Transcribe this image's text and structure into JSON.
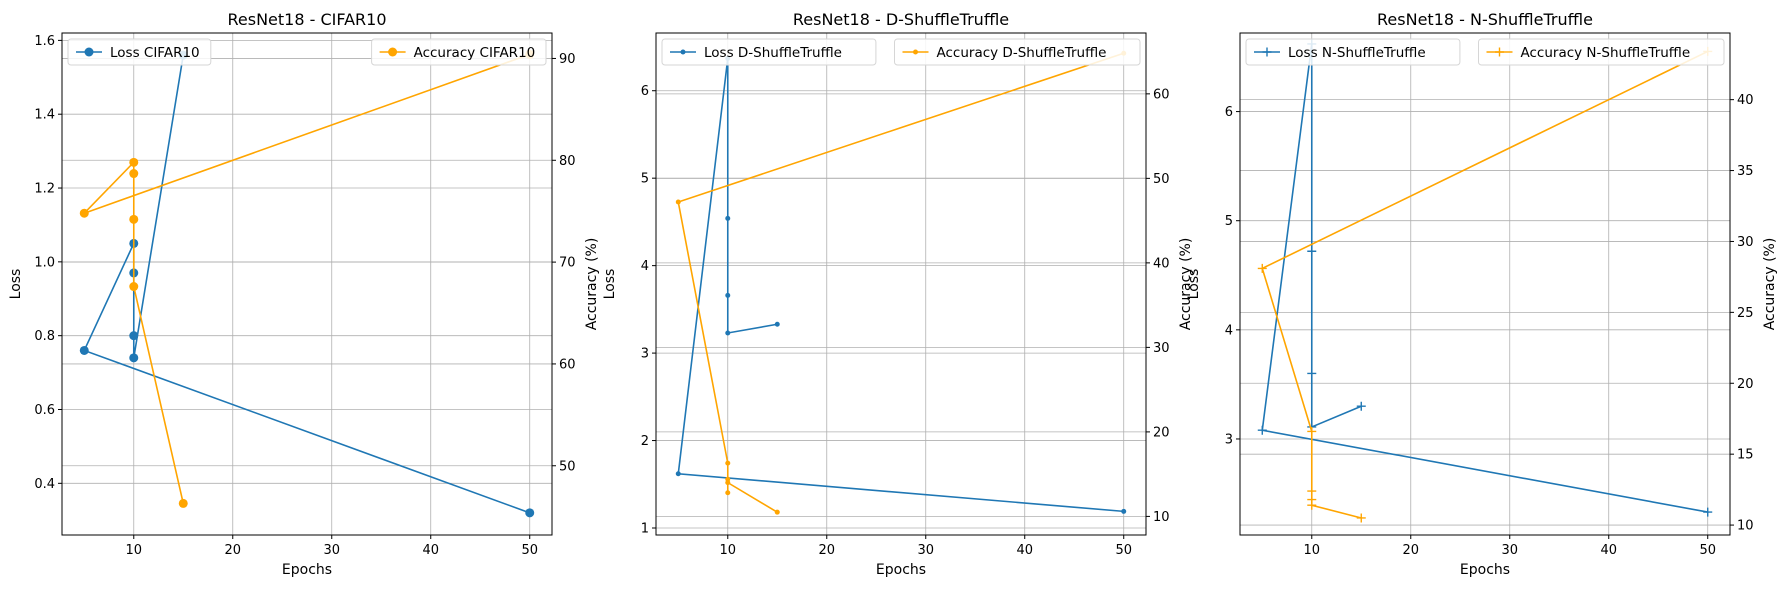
{
  "colors": {
    "loss": "#1f77b4",
    "accuracy": "#ffa500",
    "grid": "#b0b0b0"
  },
  "chart_data": [
    {
      "type": "line",
      "title": "ResNet18 - CIFAR10",
      "xlabel": "Epochs",
      "ylabel": "Loss",
      "y2label": "Accuracy (%)",
      "xlim": [
        2.75,
        52.25
      ],
      "xticks": [
        10,
        20,
        30,
        40,
        50
      ],
      "ylim": [
        0.26,
        1.62
      ],
      "yticks": [
        0.4,
        0.6,
        0.8,
        1.0,
        1.2,
        1.4,
        1.6
      ],
      "ytick_labels": [
        "0.4",
        "0.6",
        "0.8",
        "1.0",
        "1.2",
        "1.4",
        "1.6"
      ],
      "y2lim": [
        43.2,
        92.5
      ],
      "y2ticks": [
        50,
        60,
        70,
        80,
        90
      ],
      "marker": "circle",
      "grid": true,
      "legend": {
        "loss_position": "top-left",
        "accuracy_position": "top-right"
      },
      "series": [
        {
          "name": "Loss CIFAR10",
          "axis": "left",
          "x": [
            50,
            5,
            10,
            10,
            10,
            10,
            15
          ],
          "y": [
            0.32,
            0.76,
            1.05,
            0.97,
            0.8,
            0.74,
            1.56
          ]
        },
        {
          "name": "Accuracy CIFAR10",
          "axis": "right",
          "x": [
            50,
            5,
            10,
            10,
            10,
            10,
            15
          ],
          "y": [
            90.4,
            74.8,
            79.8,
            78.7,
            74.2,
            67.6,
            46.3
          ]
        }
      ]
    },
    {
      "type": "line",
      "title": "ResNet18 - D-ShuffleTruffle",
      "xlabel": "Epochs",
      "ylabel": "Loss",
      "y2label": "Accuracy (%)",
      "xlim": [
        2.75,
        52.25
      ],
      "xticks": [
        10,
        20,
        30,
        40,
        50
      ],
      "ylim": [
        0.92,
        6.66
      ],
      "yticks": [
        1,
        2,
        3,
        4,
        5,
        6
      ],
      "ytick_labels": [
        "1",
        "2",
        "3",
        "4",
        "5",
        "6"
      ],
      "y2lim": [
        7.8,
        67.2
      ],
      "y2ticks": [
        10,
        20,
        30,
        40,
        50,
        60
      ],
      "marker": "point",
      "grid": true,
      "legend": {
        "loss_position": "top-left",
        "accuracy_position": "top-right"
      },
      "series": [
        {
          "name": "Loss D-ShuffleTruffle",
          "axis": "left",
          "x": [
            50,
            5,
            10,
            10,
            10,
            10,
            15
          ],
          "y": [
            1.19,
            1.62,
            6.37,
            4.54,
            3.66,
            3.23,
            3.33
          ]
        },
        {
          "name": "Accuracy D-ShuffleTruffle",
          "axis": "right",
          "x": [
            50,
            5,
            10,
            10,
            10,
            10,
            15
          ],
          "y": [
            64.8,
            47.2,
            16.3,
            14.4,
            12.8,
            14.0,
            10.5
          ]
        }
      ]
    },
    {
      "type": "line",
      "title": "ResNet18 - N-ShuffleTruffle",
      "xlabel": "Epochs",
      "ylabel": "Loss",
      "y2label": "Accuracy (%)",
      "xlim": [
        2.75,
        52.25
      ],
      "xticks": [
        10,
        20,
        30,
        40,
        50
      ],
      "ylim": [
        2.12,
        6.72
      ],
      "yticks": [
        3,
        4,
        5,
        6
      ],
      "ytick_labels": [
        "3",
        "4",
        "5",
        "6"
      ],
      "y2lim": [
        9.3,
        44.7
      ],
      "y2ticks": [
        10,
        15,
        20,
        25,
        30,
        35,
        40
      ],
      "marker": "plus",
      "grid": true,
      "legend": {
        "loss_position": "top-left",
        "accuracy_position": "top-right"
      },
      "series": [
        {
          "name": "Loss N-ShuffleTruffle",
          "axis": "left",
          "x": [
            50,
            5,
            10,
            10,
            10,
            10,
            15
          ],
          "y": [
            2.33,
            3.08,
            6.62,
            4.72,
            3.6,
            3.11,
            3.3
          ]
        },
        {
          "name": "Accuracy N-ShuffleTruffle",
          "axis": "right",
          "x": [
            50,
            5,
            10,
            10,
            10,
            10,
            15
          ],
          "y": [
            43.4,
            28.1,
            16.6,
            12.4,
            11.8,
            11.4,
            10.5
          ]
        }
      ]
    }
  ]
}
